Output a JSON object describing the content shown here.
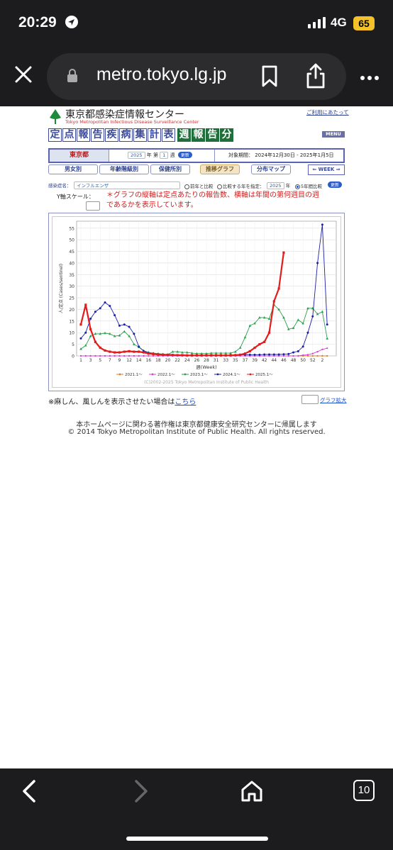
{
  "status": {
    "time": "20:29",
    "network": "4G",
    "battery": "65"
  },
  "browser": {
    "url": "metro.tokyo.lg.jp",
    "tab_count": "10"
  },
  "site": {
    "title": "東京都感染症情報センター",
    "subtitle": "Tokyo Metropolitan Infectious Disease Surveillance Center",
    "about_link": "ご利用にあたって",
    "menu_label": "MENU",
    "header_blue": [
      "定",
      "点",
      "報",
      "告",
      "疾",
      "病",
      "集",
      "計",
      "表"
    ],
    "header_green": [
      "週",
      "報",
      "告",
      "分"
    ]
  },
  "period": {
    "prefecture": "東京都",
    "year": "2025",
    "year_suffix": "年 第",
    "week": "1",
    "week_suffix": "週",
    "update_label": "更新",
    "range": "対象期間： 2024年12月30日 - 2025年1月5日"
  },
  "tabs": [
    {
      "label": "男女別",
      "active": false
    },
    {
      "label": "年齢階級別",
      "active": false
    },
    {
      "label": "保健所別",
      "active": false
    },
    {
      "label": "推移グラフ",
      "active": true
    },
    {
      "label": "分布マップ",
      "active": false
    }
  ],
  "week_nav_label": "WEEK",
  "filters": {
    "disease_label": "感染症名：",
    "disease_value": "インフルエンザ",
    "opt_prev": "前年と比較",
    "opt_specify": "比較する年を指定：",
    "compare_year": "2025",
    "compare_year_suffix": "年",
    "opt_5year": "5年間比較",
    "update_label": "更新"
  },
  "yscale_label": "Y軸スケール：",
  "note": "＊グラフの縦軸は定点あたりの報告数、横軸は年間の第何週目の週であるかを表示しています。",
  "chart_data": {
    "type": "line",
    "ylabel": "人/定点 (Cases/sentinel)",
    "xlabel": "週(Week)",
    "ylim": [
      0,
      58
    ],
    "yticks": [
      0,
      5,
      10,
      15,
      20,
      25,
      30,
      35,
      40,
      45,
      50,
      55
    ],
    "xticks": [
      "1",
      "3",
      "5",
      "7",
      "9",
      "12",
      "14",
      "16",
      "18",
      "20",
      "22",
      "24",
      "26",
      "28",
      "31",
      "33",
      "35",
      "37",
      "39",
      "42",
      "44",
      "46",
      "48",
      "50",
      "52",
      "2"
    ],
    "copyright": "(C)2002-2025 Tokyo Metropolitan Institute of Public Health",
    "legend_position": "bottom",
    "series": [
      {
        "name": "2021.1〜",
        "color": "#e07b28",
        "values": [
          0,
          0,
          0,
          0,
          0,
          0,
          0,
          0,
          0,
          0,
          0,
          0,
          0,
          0,
          0,
          0,
          0,
          0,
          0,
          0,
          0,
          0,
          0,
          0,
          0,
          0,
          0,
          0,
          0,
          0,
          0,
          0,
          0,
          0,
          0,
          0,
          0,
          0,
          0,
          0,
          0,
          0,
          0,
          0,
          0,
          0,
          0,
          0,
          0,
          0,
          0,
          0
        ]
      },
      {
        "name": "2022.1〜",
        "color": "#d63fd6",
        "values": [
          0,
          0,
          0,
          0,
          0,
          0,
          0,
          0,
          0,
          0,
          0,
          0,
          0,
          0,
          0,
          0,
          0,
          0,
          0,
          0,
          0,
          0,
          0,
          0,
          0,
          0,
          0,
          0,
          0,
          0,
          0,
          0,
          0,
          0,
          0,
          0,
          0,
          0,
          0,
          0,
          0,
          0,
          0,
          0,
          0,
          0,
          0.3,
          0.5,
          1,
          1.8,
          2.8,
          3.3
        ]
      },
      {
        "name": "2023.1〜",
        "color": "#2e9e4f",
        "values": [
          3,
          4.5,
          8.5,
          9.5,
          9.5,
          9.8,
          9.5,
          8.5,
          8.8,
          10.5,
          8.5,
          5,
          3.8,
          2.3,
          1.5,
          1.2,
          1,
          0.8,
          0.5,
          1.8,
          1.8,
          1.5,
          1.5,
          1.2,
          1,
          1,
          1,
          1.2,
          1.2,
          1.2,
          1.2,
          1.2,
          1.8,
          3.5,
          8,
          13,
          14,
          16.5,
          16.5,
          16,
          22,
          20,
          16.5,
          11.5,
          12,
          15.5,
          14,
          20.5,
          20.5,
          18,
          19,
          7.5
        ]
      },
      {
        "name": "2024.1〜",
        "color": "#1b1fa6",
        "values": [
          7.5,
          10,
          16,
          19,
          20.5,
          23,
          21.5,
          17.5,
          13,
          13.5,
          12.5,
          9.5,
          4,
          2,
          1.3,
          1,
          0.7,
          0.5,
          0.4,
          0.3,
          0.3,
          0.3,
          0.2,
          0.2,
          0.2,
          0.2,
          0.2,
          0.2,
          0.2,
          0.2,
          0.2,
          0.3,
          0.4,
          0.5,
          0.5,
          0.5,
          0.5,
          0.5,
          0.6,
          0.6,
          0.6,
          0.6,
          0.7,
          0.8,
          1.5,
          2,
          4,
          10,
          17,
          40,
          56.5,
          13.5
        ]
      },
      {
        "name": "2025.1〜",
        "color": "#e31b1b",
        "values": [
          13.5,
          22,
          11.5,
          6,
          3.5,
          2.3,
          1.8,
          1.5,
          1.5,
          1.8,
          2,
          1.8,
          1.8,
          1.5,
          1,
          0.8,
          0.6,
          0.5,
          0.5,
          0.4,
          0.3,
          0.3,
          0.2,
          0.2,
          0.2,
          0.2,
          0.2,
          0.2,
          0.2,
          0.2,
          0.2,
          0.2,
          0.3,
          0.5,
          1,
          2,
          3.5,
          5,
          6,
          10,
          23.5,
          29,
          44.5
        ]
      }
    ]
  },
  "footer": {
    "measles_note": "※麻しん、風しんを表示させたい場合は",
    "measles_link": "こちら",
    "zoom_label": "グラフ拡大",
    "copyright_1": "本ホームページに関わる著作権は東京都健康安全研究センターに帰属します",
    "copyright_2": "© 2014 Tokyo Metropolitan Institute of Public Health. All rights reserved."
  }
}
